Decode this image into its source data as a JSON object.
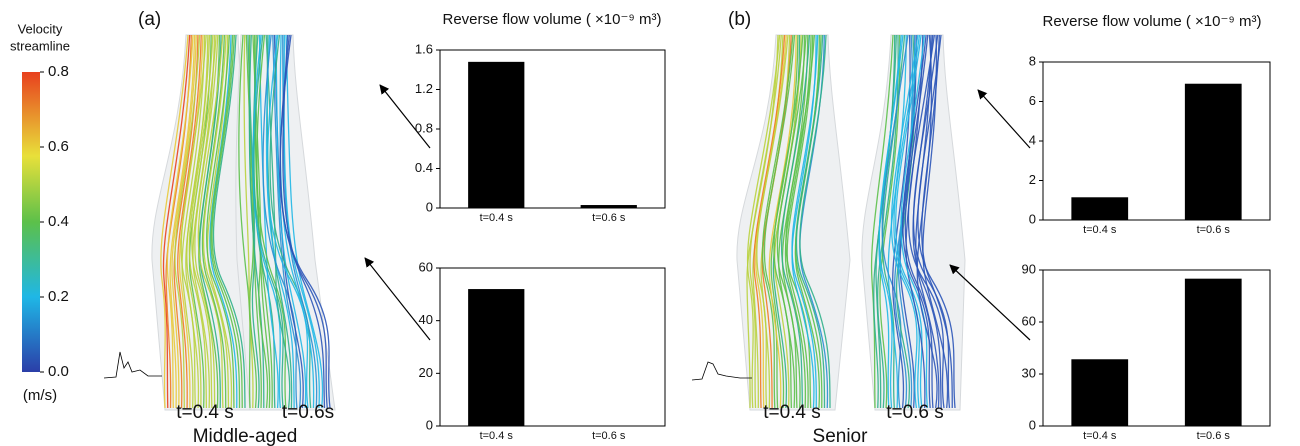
{
  "colorbar": {
    "title_lines": [
      "Velocity",
      "streamline"
    ],
    "unit": "(m/s)",
    "lim": [
      0,
      0.8
    ],
    "ticks": [
      {
        "value": 0,
        "label": "0.0"
      },
      0.2,
      0.4,
      0.6,
      0.8
    ]
  },
  "panels": [
    {
      "label": "(a)",
      "title": "Reverse flow volume ( ×10⁻⁹ m³)",
      "times": [
        "t=0.4 s",
        "t=0.6s"
      ],
      "group": "Middle-aged"
    },
    {
      "label": "(b)",
      "title": "Reverse flow volume ( ×10⁻⁹ m³)",
      "times": [
        "t=0.4 s",
        "t=0.6 s"
      ],
      "group": "Senior"
    }
  ],
  "chart_data": [
    {
      "type": "bar",
      "categories": [
        "t=0.4 s",
        "t=0.6 s"
      ],
      "values": [
        1.48,
        0.03
      ],
      "color": "#000000",
      "ylim": [
        0,
        1.6
      ],
      "yticks": [
        0,
        0.4,
        0.8,
        1.2,
        1.6
      ]
    },
    {
      "type": "bar",
      "categories": [
        "t=0.4 s",
        "t=0.6 s"
      ],
      "values": [
        52,
        0
      ],
      "color": "#000000",
      "ylim": [
        0,
        60
      ],
      "yticks": [
        0,
        20,
        40,
        60
      ]
    },
    {
      "type": "bar",
      "categories": [
        "t=0.4 s",
        "t=0.6 s"
      ],
      "values": [
        1.15,
        6.9
      ],
      "color": "#000000",
      "ylim": [
        0,
        8
      ],
      "yticks": [
        0,
        2,
        4,
        6,
        8
      ]
    },
    {
      "type": "bar",
      "categories": [
        "t=0.4 s",
        "t=0.6 s"
      ],
      "values": [
        38.5,
        85
      ],
      "color": "#000000",
      "ylim": [
        0,
        90
      ],
      "yticks": [
        0,
        30,
        60,
        90
      ]
    }
  ]
}
